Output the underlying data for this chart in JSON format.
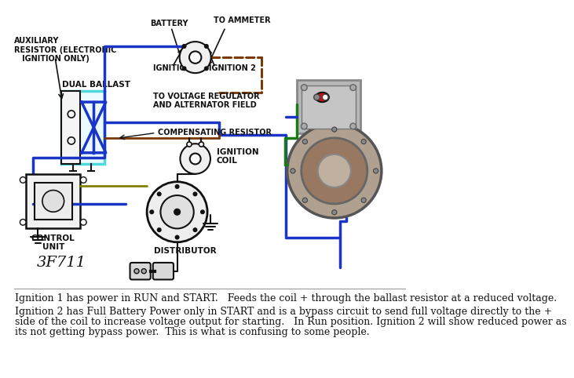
{
  "bg_color": "#ffffff",
  "text1": "Ignition 1 has power in RUN and START.   Feeds the coil + through the ballast resistor at a reduced voltage.",
  "text2_line1": "Ignition 2 has Full Battery Power only in START and is a bypass circuit to send full voltage directly to the +",
  "text2_line2": "side of the coil to increase voltage output for starting.   In Run position. Ignition 2 will show reduced power as",
  "text2_line3": "its not getting bypass power.  This is what is confusing to some people.",
  "label_aux": "AUXILIARY\nRESISTOR (ELECTRONIC\n   IGNITION ONLY)",
  "label_dual": "DUAL BALLAST",
  "label_battery": "BATTERY",
  "label_ammeter": "TO AMMETER",
  "label_ign1": "IGNITION 1",
  "label_ign2": "IGNITION 2",
  "label_vreg": "TO VOLTAGE REGULATOR\nAND ALTERNATOR FIELD",
  "label_comp": "COMPENSATING RESISTOR",
  "label_coil": "IGNITION\nCOIL",
  "label_dist": "DISTRIBUTOR",
  "label_ctrl": "CONTROL\nUNIT",
  "label_code": "3F711",
  "wire_blue": "#1a35c8",
  "wire_brown": "#7B3800",
  "wire_green": "#1a7a1a",
  "wire_black": "#111111",
  "wire_olive": "#808000",
  "ballast_cyan": "#4dd9dc",
  "font_size_label": 7.0,
  "font_size_text": 9.0,
  "font_size_code": 14.0
}
